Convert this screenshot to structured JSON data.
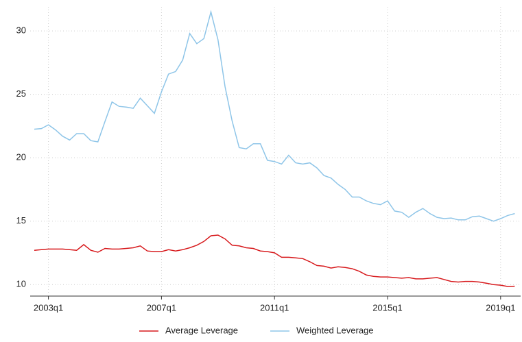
{
  "chart_data": {
    "type": "line",
    "categories": [
      null,
      null,
      "2003q1",
      null,
      null,
      null,
      null,
      null,
      null,
      null,
      null,
      null,
      null,
      null,
      null,
      null,
      null,
      null,
      "2007q1",
      null,
      null,
      null,
      null,
      null,
      null,
      null,
      null,
      null,
      null,
      null,
      null,
      null,
      null,
      null,
      "2011q1",
      null,
      null,
      null,
      null,
      null,
      null,
      null,
      null,
      null,
      null,
      null,
      null,
      null,
      null,
      null,
      "2015q1",
      null,
      null,
      null,
      null,
      null,
      null,
      null,
      null,
      null,
      null,
      null,
      null,
      null,
      null,
      null,
      "2019q1",
      null,
      null
    ],
    "series": [
      {
        "name": "Average Leverage",
        "color": "#d7191c",
        "values": [
          12.7,
          12.75,
          12.8,
          12.8,
          12.8,
          12.75,
          12.7,
          13.15,
          12.7,
          12.55,
          12.85,
          12.8,
          12.8,
          12.85,
          12.9,
          13.05,
          12.65,
          12.6,
          12.6,
          12.75,
          12.65,
          12.75,
          12.9,
          13.1,
          13.4,
          13.85,
          13.9,
          13.6,
          13.1,
          13.05,
          12.9,
          12.85,
          12.65,
          12.6,
          12.5,
          12.15,
          12.15,
          12.1,
          12.05,
          11.8,
          11.5,
          11.45,
          11.3,
          11.4,
          11.35,
          11.25,
          11.05,
          10.75,
          10.65,
          10.6,
          10.6,
          10.55,
          10.5,
          10.55,
          10.45,
          10.45,
          10.5,
          10.55,
          10.4,
          10.25,
          10.2,
          10.25,
          10.25,
          10.2,
          10.1,
          10.0,
          9.95,
          9.85,
          9.87
        ]
      },
      {
        "name": "Weighted Leverage",
        "color": "#8ec5e8",
        "values": [
          22.25,
          22.3,
          22.6,
          22.2,
          21.7,
          21.4,
          21.9,
          21.9,
          21.35,
          21.25,
          22.85,
          24.4,
          24.05,
          24.0,
          23.9,
          24.7,
          24.1,
          23.5,
          25.2,
          26.6,
          26.8,
          27.7,
          29.8,
          29.0,
          29.4,
          31.5,
          29.3,
          25.6,
          22.9,
          20.8,
          20.7,
          21.1,
          21.1,
          19.8,
          19.7,
          19.5,
          20.2,
          19.6,
          19.5,
          19.6,
          19.2,
          18.6,
          18.4,
          17.9,
          17.5,
          16.9,
          16.9,
          16.6,
          16.4,
          16.3,
          16.6,
          15.8,
          15.7,
          15.3,
          15.7,
          16.0,
          15.6,
          15.3,
          15.2,
          15.25,
          15.1,
          15.1,
          15.35,
          15.4,
          15.2,
          15.0,
          15.2,
          15.45,
          15.6
        ]
      }
    ],
    "ylim": [
      9.2,
      31.9
    ],
    "yticks": [
      10,
      15,
      20,
      25,
      30
    ],
    "grid": true
  }
}
